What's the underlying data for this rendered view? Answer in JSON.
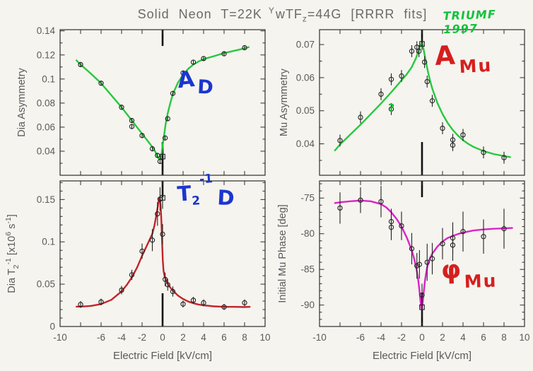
{
  "title": {
    "text1": "Solid Neon T=22K",
    "sup": "Y",
    "text2": "wTF",
    "sub": "z",
    "text3": "=44G [RRRR fits]"
  },
  "annotations": {
    "dia": {
      "main": "A",
      "sub": "D"
    },
    "mu": {
      "main": "A",
      "sub": "Mu"
    },
    "t2": {
      "base": "T",
      "sub": "2",
      "sup": "-1",
      "tail": "D"
    },
    "phase": {
      "main": "φ",
      "sub": "Mu"
    },
    "query": "?",
    "credit": "TRIUMF 1997"
  },
  "colors": {
    "fit_green": "#27c840",
    "fit_red": "#c4232a",
    "fit_magenta": "#dc22c8",
    "annotation_blue": "#1b36cf",
    "annotation_red": "#d51f1f",
    "annotation_green": "#12c23c",
    "axis_text": "#5a5a5a",
    "frame": "#2e2e2e",
    "marker": "#222222",
    "zero_marker": "#101010",
    "background": "#f5f4ee"
  },
  "x_axis": {
    "label": "Electric Field [kV/cm]",
    "range": [
      -10,
      10
    ],
    "ticks": [
      -10,
      -8,
      -6,
      -4,
      -2,
      0,
      2,
      4,
      6,
      8,
      10
    ],
    "labeled_ticks": [
      -10,
      -6,
      -4,
      -2,
      0,
      2,
      4,
      6,
      8,
      10
    ],
    "tick_labels": [
      "-10",
      "-6",
      "-4",
      "-2",
      "0",
      "2",
      "4",
      "6",
      "8",
      "10"
    ]
  },
  "chart_data": [
    {
      "id": "dia-asymmetry",
      "type": "scatter",
      "grid_pos": "top-left",
      "ylabel": "Dia Asymmetry",
      "ylabel_parts": [
        {
          "t": "Dia Asymmetry"
        }
      ],
      "ylim": [
        0.02,
        0.141
      ],
      "yticks": [
        0.04,
        0.06,
        0.08,
        0.1,
        0.12,
        0.14
      ],
      "ytick_labels": [
        "0.04",
        "0.06",
        "0.08",
        "0.1",
        "0.12",
        "0.14"
      ],
      "y_minor_step": 0.01,
      "show_x_labels": false,
      "fit_color": "fit_green",
      "fit_curve": [
        [
          -8.4,
          0.1155
        ],
        [
          -8,
          0.112
        ],
        [
          -7,
          0.1045
        ],
        [
          -6,
          0.0965
        ],
        [
          -5,
          0.0865
        ],
        [
          -4,
          0.0765
        ],
        [
          -3,
          0.0655
        ],
        [
          -2,
          0.0545
        ],
        [
          -1.5,
          0.049
        ],
        [
          -1,
          0.0435
        ],
        [
          -0.7,
          0.0395
        ],
        [
          -0.5,
          0.0355
        ],
        [
          -0.35,
          0.0335
        ],
        [
          -0.25,
          0.0335
        ],
        [
          -0.1,
          0.038
        ],
        [
          0,
          0.0445
        ],
        [
          0.15,
          0.0535
        ],
        [
          0.3,
          0.0625
        ],
        [
          0.5,
          0.0715
        ],
        [
          0.75,
          0.08
        ],
        [
          1,
          0.0875
        ],
        [
          1.5,
          0.097
        ],
        [
          2,
          0.1035
        ],
        [
          2.5,
          0.1085
        ],
        [
          3,
          0.112
        ],
        [
          3.5,
          0.1145
        ],
        [
          4,
          0.1165
        ],
        [
          5,
          0.119
        ],
        [
          6,
          0.1215
        ],
        [
          7,
          0.1235
        ],
        [
          8,
          0.1255
        ],
        [
          8.4,
          0.1265
        ]
      ],
      "points": [
        [
          -8,
          0.112,
          0.002
        ],
        [
          -6,
          0.0965,
          0.002
        ],
        [
          -4,
          0.0765,
          0.002
        ],
        [
          -3,
          0.0655,
          0.002
        ],
        [
          -3,
          0.0605,
          0.002
        ],
        [
          -2,
          0.053,
          0.002
        ],
        [
          -1,
          0.042,
          0.002
        ],
        [
          -0.5,
          0.0365,
          0.002
        ],
        [
          -0.25,
          0.0315,
          0.002
        ],
        [
          0.25,
          0.051,
          0.002
        ],
        [
          0.5,
          0.067,
          0.002
        ],
        [
          1,
          0.088,
          0.002
        ],
        [
          2,
          0.105,
          0.002
        ],
        [
          3,
          0.114,
          0.002
        ],
        [
          4,
          0.117,
          0.002
        ],
        [
          6,
          0.121,
          0.002
        ],
        [
          8,
          0.126,
          0.002
        ]
      ],
      "zero_field_point": [
        0,
        0.0355,
        0.002
      ]
    },
    {
      "id": "mu-asymmetry",
      "type": "scatter",
      "grid_pos": "top-right",
      "ylabel": "Mu Asymmetry",
      "ylabel_parts": [
        {
          "t": "Mu Asymmetry"
        }
      ],
      "ylim": [
        0.0305,
        0.0745
      ],
      "yticks": [
        0.04,
        0.05,
        0.06,
        0.07
      ],
      "ytick_labels": [
        "0.04",
        "0.05",
        "0.06",
        "0.07"
      ],
      "y_minor_step": 0.005,
      "show_x_labels": false,
      "fit_color": "fit_green",
      "fit_curve": [
        [
          -8.5,
          0.038
        ],
        [
          -8,
          0.0398
        ],
        [
          -7,
          0.0428
        ],
        [
          -6,
          0.0458
        ],
        [
          -5,
          0.049
        ],
        [
          -4,
          0.0522
        ],
        [
          -3,
          0.0556
        ],
        [
          -2,
          0.0592
        ],
        [
          -1.5,
          0.061
        ],
        [
          -1,
          0.0632
        ],
        [
          -0.6,
          0.0658
        ],
        [
          -0.3,
          0.0683
        ],
        [
          -0.15,
          0.0698
        ],
        [
          -0.05,
          0.0704
        ],
        [
          0.05,
          0.0702
        ],
        [
          0.2,
          0.0678
        ],
        [
          0.4,
          0.0645
        ],
        [
          0.6,
          0.0615
        ],
        [
          0.8,
          0.0589
        ],
        [
          1,
          0.0567
        ],
        [
          1.5,
          0.0523
        ],
        [
          2,
          0.049
        ],
        [
          2.5,
          0.0463
        ],
        [
          3,
          0.0442
        ],
        [
          3.5,
          0.0425
        ],
        [
          4,
          0.0411
        ],
        [
          4.5,
          0.04
        ],
        [
          5,
          0.0391
        ],
        [
          6,
          0.0378
        ],
        [
          7,
          0.0369
        ],
        [
          8,
          0.0363
        ],
        [
          8.6,
          0.036
        ]
      ],
      "points": [
        [
          -8,
          0.041,
          0.0018
        ],
        [
          -6,
          0.048,
          0.0018
        ],
        [
          -4,
          0.055,
          0.0018
        ],
        [
          -3,
          0.0595,
          0.0018
        ],
        [
          -3,
          0.0505,
          0.0018
        ],
        [
          -2,
          0.0605,
          0.0018
        ],
        [
          -1,
          0.068,
          0.0018
        ],
        [
          -0.5,
          0.0692,
          0.0018
        ],
        [
          -0.3,
          0.068,
          0.0018
        ],
        [
          0.25,
          0.0647,
          0.0018
        ],
        [
          0.5,
          0.0588,
          0.0018
        ],
        [
          1,
          0.053,
          0.0018
        ],
        [
          2,
          0.0447,
          0.0018
        ],
        [
          3,
          0.0412,
          0.0018
        ],
        [
          3,
          0.0396,
          0.0018
        ],
        [
          4,
          0.0427,
          0.0018
        ],
        [
          6,
          0.0374,
          0.0018
        ],
        [
          8,
          0.0358,
          0.0018
        ]
      ],
      "zero_field_point": [
        0,
        0.0702,
        0.0018
      ]
    },
    {
      "id": "dia-t2-rate",
      "type": "scatter",
      "grid_pos": "bottom-left",
      "ylabel": "Dia T2-1 [x10^6 s^-1]",
      "ylabel_parts": [
        {
          "t": "Dia T"
        },
        {
          "t": "2",
          "pos": "sub"
        },
        {
          "t": "-1",
          "pos": "sup"
        },
        {
          "t": " [x10"
        },
        {
          "t": "6",
          "pos": "sup"
        },
        {
          "t": " s"
        },
        {
          "t": "-1",
          "pos": "sup"
        },
        {
          "t": "]"
        }
      ],
      "ylim": [
        0,
        0.172
      ],
      "yticks": [
        0,
        0.05,
        0.1,
        0.15
      ],
      "ytick_labels": [
        "0",
        "0.05",
        "0.1",
        "0.15"
      ],
      "y_minor_step": 0.01,
      "show_x_labels": true,
      "fit_color": "fit_red",
      "fit_curve": [
        [
          -8.4,
          0.0235
        ],
        [
          -8,
          0.0235
        ],
        [
          -7,
          0.0243
        ],
        [
          -6,
          0.0265
        ],
        [
          -5,
          0.0315
        ],
        [
          -4,
          0.0415
        ],
        [
          -3.5,
          0.049
        ],
        [
          -3,
          0.058
        ],
        [
          -2.5,
          0.0695
        ],
        [
          -2,
          0.0835
        ],
        [
          -1.5,
          0.0965
        ],
        [
          -1,
          0.1095
        ],
        [
          -0.8,
          0.119
        ],
        [
          -0.6,
          0.132
        ],
        [
          -0.45,
          0.143
        ],
        [
          -0.35,
          0.1505
        ],
        [
          -0.28,
          0.152
        ],
        [
          -0.2,
          0.1445
        ],
        [
          -0.12,
          0.125
        ],
        [
          -0.05,
          0.1
        ],
        [
          0.02,
          0.078
        ],
        [
          0.1,
          0.0655
        ],
        [
          0.2,
          0.059
        ],
        [
          0.35,
          0.054
        ],
        [
          0.5,
          0.0505
        ],
        [
          0.75,
          0.046
        ],
        [
          1,
          0.0425
        ],
        [
          1.5,
          0.0365
        ],
        [
          2,
          0.0325
        ],
        [
          2.5,
          0.0295
        ],
        [
          3,
          0.0275
        ],
        [
          3.5,
          0.026
        ],
        [
          4,
          0.025
        ],
        [
          5,
          0.0238
        ],
        [
          6,
          0.0232
        ],
        [
          7,
          0.0232
        ],
        [
          8,
          0.023
        ],
        [
          8.5,
          0.0232
        ]
      ],
      "points": [
        [
          -8,
          0.026,
          0.004
        ],
        [
          -6,
          0.029,
          0.004
        ],
        [
          -4,
          0.043,
          0.005
        ],
        [
          -3,
          0.061,
          0.006
        ],
        [
          -2,
          0.089,
          0.009
        ],
        [
          -1,
          0.102,
          0.013
        ],
        [
          -0.5,
          0.133,
          0.014
        ],
        [
          -0.25,
          0.1505,
          0.014
        ],
        [
          0,
          0.109,
          0.012
        ],
        [
          0.25,
          0.0557,
          0.008
        ],
        [
          0.5,
          0.0493,
          0.007
        ],
        [
          1,
          0.0413,
          0.006
        ],
        [
          2,
          0.0265,
          0.004
        ],
        [
          3,
          0.031,
          0.004
        ],
        [
          4,
          0.028,
          0.004
        ],
        [
          6,
          0.023,
          0.0035
        ],
        [
          8,
          0.028,
          0.004
        ]
      ],
      "zero_field_point": [
        0,
        0.152,
        0.013
      ]
    },
    {
      "id": "mu-phase",
      "type": "scatter",
      "grid_pos": "bottom-right",
      "ylabel": "Initial Mu Phase [deg]",
      "ylabel_parts": [
        {
          "t": "Initial Mu Phase [deg]"
        }
      ],
      "ylim": [
        -93,
        -72.6
      ],
      "yticks": [
        -90,
        -85,
        -80,
        -75
      ],
      "ytick_labels": [
        "-90",
        "-85",
        "-80",
        "-75"
      ],
      "y_minor_step": 1,
      "show_x_labels": true,
      "fit_color": "fit_magenta",
      "fit_curve": [
        [
          -8.5,
          -75.7
        ],
        [
          -8,
          -75.6
        ],
        [
          -7,
          -75.45
        ],
        [
          -6,
          -75.35
        ],
        [
          -5,
          -75.45
        ],
        [
          -4,
          -75.85
        ],
        [
          -3.5,
          -76.3
        ],
        [
          -3,
          -77
        ],
        [
          -2.5,
          -77.9
        ],
        [
          -2,
          -79
        ],
        [
          -1.5,
          -80.5
        ],
        [
          -1,
          -82.3
        ],
        [
          -0.7,
          -83.9
        ],
        [
          -0.5,
          -85.3
        ],
        [
          -0.35,
          -86.7
        ],
        [
          -0.25,
          -88
        ],
        [
          -0.15,
          -89.4
        ],
        [
          -0.08,
          -90.3
        ],
        [
          -0.02,
          -90.6
        ],
        [
          0.05,
          -90
        ],
        [
          0.15,
          -88.4
        ],
        [
          0.3,
          -86.4
        ],
        [
          0.5,
          -84.7
        ],
        [
          0.75,
          -83.5
        ],
        [
          1,
          -82.8
        ],
        [
          1.5,
          -81.8
        ],
        [
          2,
          -81.1
        ],
        [
          2.5,
          -80.6
        ],
        [
          3,
          -80.3
        ],
        [
          3.5,
          -80.05
        ],
        [
          4,
          -79.85
        ],
        [
          5,
          -79.55
        ],
        [
          6,
          -79.4
        ],
        [
          7,
          -79.3
        ],
        [
          8,
          -79.25
        ],
        [
          8.8,
          -79.2
        ]
      ],
      "points": [
        [
          -8,
          -76.4,
          2.2
        ],
        [
          -6,
          -75.3,
          1.8
        ],
        [
          -4,
          -75.5,
          2.2
        ],
        [
          -3,
          -78.3,
          1.8
        ],
        [
          -3,
          -79.1,
          1.8
        ],
        [
          -2,
          -78.9,
          2
        ],
        [
          -1,
          -82.1,
          2.2
        ],
        [
          -0.5,
          -84.5,
          1.8
        ],
        [
          -0.25,
          -84.3,
          2
        ],
        [
          0,
          -88.6,
          1.6
        ],
        [
          0.5,
          -84,
          2.6
        ],
        [
          1,
          -83.5,
          2.2
        ],
        [
          2,
          -81.4,
          2.2
        ],
        [
          3,
          -80.6,
          2.2
        ],
        [
          3,
          -81.6,
          2.2
        ],
        [
          4,
          -79.7,
          2.8
        ],
        [
          6,
          -80.4,
          2.4
        ],
        [
          8,
          -79.3,
          2.8
        ]
      ],
      "zero_field_point": [
        0,
        -90.3,
        1.5
      ]
    }
  ]
}
